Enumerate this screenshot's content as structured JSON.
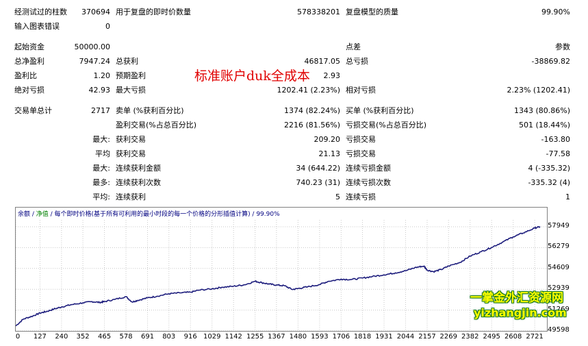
{
  "stats": {
    "r0": {
      "a_label": "经测试过的柱数",
      "a_value": "370694",
      "b_label": "用于复盘的即时价数量",
      "b_value": "578338201",
      "c_label": "复盘模型的质量",
      "c_value": "99.90%"
    },
    "r1": {
      "a_label": "输入图表错误",
      "a_value": "0"
    },
    "r2": {
      "a_label": "起始资金",
      "a_value": "50000.00",
      "c_label": "点差",
      "c_value": "参数"
    },
    "r3": {
      "a_label": "总净盈利",
      "a_value": "7947.24",
      "b_label": "总获利",
      "b_value": "46817.05",
      "c_label": "总亏损",
      "c_value": "-38869.82"
    },
    "r4": {
      "a_label": "盈利比",
      "a_value": "1.20",
      "b_label": "预期盈利",
      "b_value": "2.93"
    },
    "r5": {
      "a_label": "绝对亏损",
      "a_value": "42.93",
      "b_label": "最大亏损",
      "b_value": "1202.41 (2.23%)",
      "c_label": "相对亏损",
      "c_value": "2.23% (1202.41)"
    },
    "r6": {
      "a_label": "交易单总计",
      "a_value": "2717",
      "b_label": "卖单 (%获利百分比)",
      "b_value": "1374 (82.24%)",
      "c_label": "买单 (%获利百分比)",
      "c_value": "1343 (80.86%)"
    },
    "r7": {
      "b_label": "盈利交易(%占总百分比)",
      "b_value": "2216 (81.56%)",
      "c_label": "亏损交易(%占总百分比)",
      "c_value": "501 (18.44%)"
    },
    "r8": {
      "pre": "最大:",
      "b_label": "获利交易",
      "b_value": "209.20",
      "c_label": "亏损交易",
      "c_value": "-163.80"
    },
    "r9": {
      "pre": "平均",
      "b_label": "获利交易",
      "b_value": "21.13",
      "c_label": "亏损交易",
      "c_value": "-77.58"
    },
    "r10": {
      "pre": "最大:",
      "b_label": "连续获利金额",
      "b_value": "34 (644.22)",
      "c_label": "连续亏损金额",
      "c_value": "4 (-335.32)"
    },
    "r11": {
      "pre": "最多:",
      "b_label": "连续获利次数",
      "b_value": "740.23 (31)",
      "c_label": "连续亏损次数",
      "c_value": "-335.32 (4)"
    },
    "r12": {
      "pre": "平均:",
      "b_label": "连续获利",
      "b_value": "5",
      "c_label": "连续亏损",
      "c_value": "1"
    }
  },
  "watermark": "标准账户duk全成本",
  "brand": {
    "line1": "一掌金外汇资源网",
    "line2": "yizhangjin.com"
  },
  "chart_data": {
    "type": "line",
    "legend": {
      "balance_label": "余额",
      "separator": " / ",
      "equity_label": "净值",
      "rest": " / 每个即时价格(基于所有可利用的最小时段的每一个价格的分形插值计算) / 99.90%"
    },
    "colors": {
      "line": "#1c1c7c",
      "grid": "#c8c8c8"
    },
    "ylim": [
      49598,
      58500
    ],
    "y_ticks": [
      "57949",
      "56279",
      "54609",
      "52939",
      "51269",
      "49598"
    ],
    "x_ticks": [
      "0",
      "127",
      "240",
      "352",
      "465",
      "578",
      "691",
      "803",
      "916",
      "1029",
      "1142",
      "1255",
      "1367",
      "1480",
      "1593",
      "1706",
      "1818",
      "1931",
      "2044",
      "2157",
      "2269",
      "2382",
      "2495",
      "2608",
      "2721"
    ],
    "series": [
      {
        "x": [
          0,
          40,
          90,
          127,
          160,
          200,
          240,
          290,
          352,
          400,
          440,
          465,
          520,
          578,
          610,
          640,
          691,
          740,
          803,
          860,
          916,
          960,
          1029,
          1080,
          1142,
          1200,
          1255,
          1290,
          1330,
          1367,
          1410,
          1450,
          1480,
          1530,
          1593,
          1640,
          1706,
          1760,
          1818,
          1870,
          1931,
          1990,
          2044,
          2100,
          2140,
          2157,
          2190,
          2230,
          2269,
          2330,
          2382,
          2440,
          2495,
          2550,
          2608,
          2660,
          2721,
          2750
        ],
        "values": [
          50000,
          50550,
          50800,
          51030,
          51150,
          51350,
          51520,
          51700,
          51850,
          51950,
          51880,
          51950,
          52130,
          52350,
          51920,
          52050,
          52250,
          52380,
          52580,
          52650,
          52700,
          52870,
          52970,
          53100,
          53180,
          53300,
          53580,
          53470,
          53350,
          53280,
          53220,
          52920,
          53000,
          53130,
          53320,
          53580,
          53750,
          53720,
          53840,
          53960,
          54100,
          54250,
          54430,
          54700,
          54800,
          54480,
          54350,
          54520,
          54800,
          55100,
          55600,
          55950,
          56300,
          56700,
          57150,
          57450,
          57850,
          57960
        ]
      }
    ]
  }
}
